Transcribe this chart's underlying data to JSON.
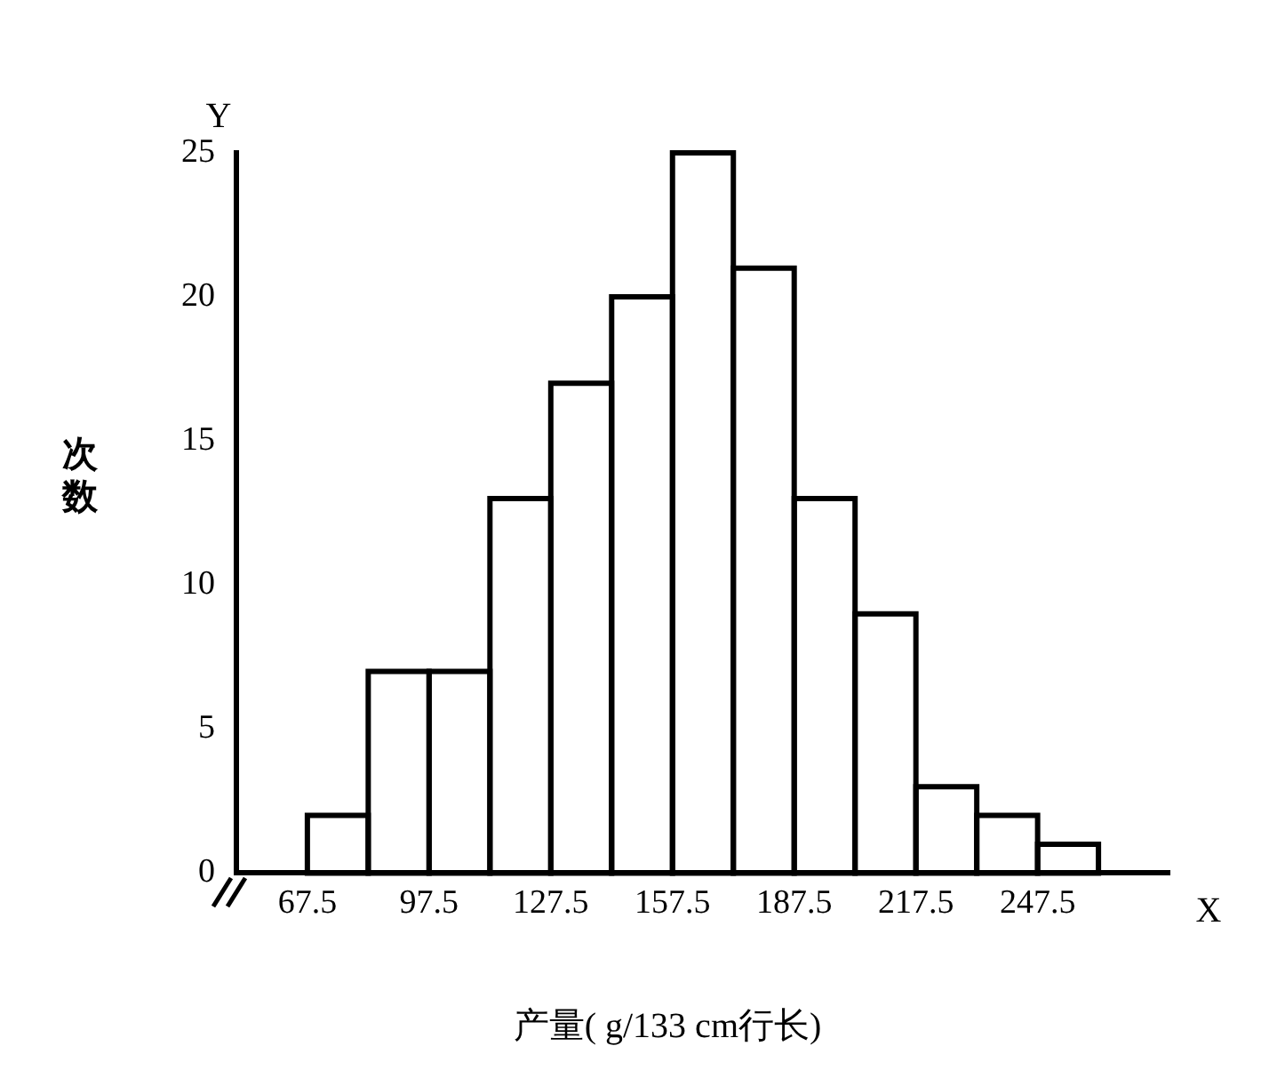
{
  "chart_data": {
    "type": "histogram",
    "xlabel": "产量( g/133 cm行长)",
    "ylabel": "次数",
    "annotations": [
      "Y",
      "X"
    ],
    "bins": [
      67.5,
      82.5,
      97.5,
      112.5,
      127.5,
      142.5,
      157.5,
      172.5,
      187.5,
      202.5,
      217.5,
      232.5,
      247.5,
      262.5
    ],
    "values": [
      2,
      7,
      7,
      13,
      17,
      20,
      25,
      21,
      13,
      9,
      3,
      2,
      1
    ],
    "color": "#000000",
    "xlim": [
      50,
      280
    ],
    "xticks": [
      67.5,
      97.5,
      127.5,
      157.5,
      187.5,
      217.5,
      247.5
    ],
    "ylim": [
      0,
      25
    ],
    "yticks": [
      0,
      5,
      10,
      15,
      20,
      25
    ],
    "grid": false,
    "legend": false
  }
}
